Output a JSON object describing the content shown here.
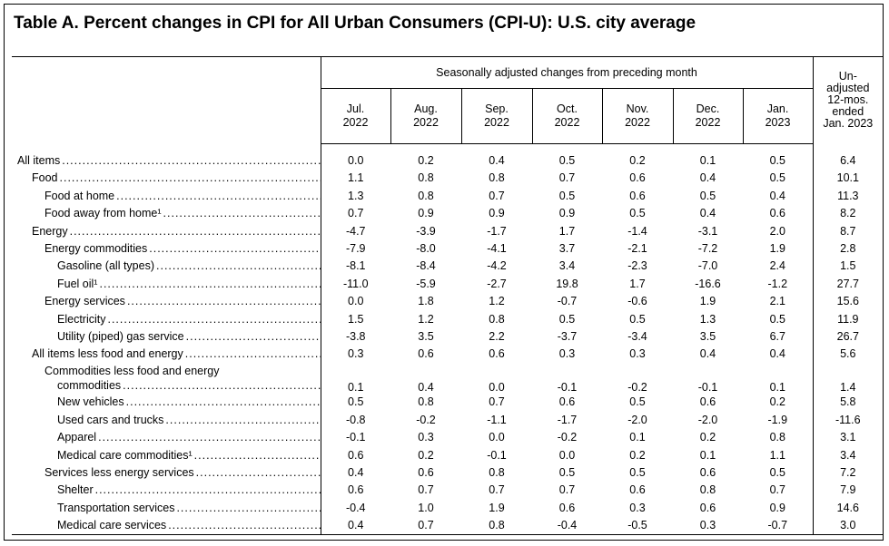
{
  "title": "Table A. Percent changes in CPI for All Urban Consumers (CPI-U): U.S. city average",
  "header": {
    "span_label": "Seasonally adjusted changes from preceding month",
    "months": [
      {
        "month": "Jul.",
        "year": "2022"
      },
      {
        "month": "Aug.",
        "year": "2022"
      },
      {
        "month": "Sep.",
        "year": "2022"
      },
      {
        "month": "Oct.",
        "year": "2022"
      },
      {
        "month": "Nov.",
        "year": "2022"
      },
      {
        "month": "Dec.",
        "year": "2022"
      },
      {
        "month": "Jan.",
        "year": "2023"
      }
    ],
    "unadjusted_lines": [
      "Un-",
      "adjusted",
      "12-mos.",
      "ended",
      "Jan. 2023"
    ]
  },
  "rows": [
    {
      "label": "All items",
      "indent": 0,
      "values": [
        "0.0",
        "0.2",
        "0.4",
        "0.5",
        "0.2",
        "0.1",
        "0.5",
        "6.4"
      ]
    },
    {
      "label": "Food",
      "indent": 1,
      "values": [
        "1.1",
        "0.8",
        "0.8",
        "0.7",
        "0.6",
        "0.4",
        "0.5",
        "10.1"
      ]
    },
    {
      "label": "Food at home",
      "indent": 2,
      "values": [
        "1.3",
        "0.8",
        "0.7",
        "0.5",
        "0.6",
        "0.5",
        "0.4",
        "11.3"
      ]
    },
    {
      "label": "Food away from home¹",
      "indent": 2,
      "values": [
        "0.7",
        "0.9",
        "0.9",
        "0.9",
        "0.5",
        "0.4",
        "0.6",
        "8.2"
      ]
    },
    {
      "label": "Energy",
      "indent": 1,
      "values": [
        "-4.7",
        "-3.9",
        "-1.7",
        "1.7",
        "-1.4",
        "-3.1",
        "2.0",
        "8.7"
      ]
    },
    {
      "label": "Energy commodities",
      "indent": 2,
      "values": [
        "-7.9",
        "-8.0",
        "-4.1",
        "3.7",
        "-2.1",
        "-7.2",
        "1.9",
        "2.8"
      ]
    },
    {
      "label": "Gasoline (all types)",
      "indent": 3,
      "values": [
        "-8.1",
        "-8.4",
        "-4.2",
        "3.4",
        "-2.3",
        "-7.0",
        "2.4",
        "1.5"
      ]
    },
    {
      "label": "Fuel oil¹",
      "indent": 3,
      "values": [
        "-11.0",
        "-5.9",
        "-2.7",
        "19.8",
        "1.7",
        "-16.6",
        "-1.2",
        "27.7"
      ]
    },
    {
      "label": "Energy services",
      "indent": 2,
      "values": [
        "0.0",
        "1.8",
        "1.2",
        "-0.7",
        "-0.6",
        "1.9",
        "2.1",
        "15.6"
      ]
    },
    {
      "label": "Electricity",
      "indent": 3,
      "values": [
        "1.5",
        "1.2",
        "0.8",
        "0.5",
        "0.5",
        "1.3",
        "0.5",
        "11.9"
      ]
    },
    {
      "label": "Utility (piped) gas service",
      "indent": 3,
      "values": [
        "-3.8",
        "3.5",
        "2.2",
        "-3.7",
        "-3.4",
        "3.5",
        "6.7",
        "26.7"
      ]
    },
    {
      "label": "All items less food and energy",
      "indent": 1,
      "values": [
        "0.3",
        "0.6",
        "0.6",
        "0.3",
        "0.3",
        "0.4",
        "0.4",
        "5.6"
      ]
    },
    {
      "label": "Commodities less food and energy",
      "label2": "commodities",
      "indent": 2,
      "values": [
        "0.1",
        "0.4",
        "0.0",
        "-0.1",
        "-0.2",
        "-0.1",
        "0.1",
        "1.4"
      ]
    },
    {
      "label": "New vehicles",
      "indent": 3,
      "values": [
        "0.5",
        "0.8",
        "0.7",
        "0.6",
        "0.5",
        "0.6",
        "0.2",
        "5.8"
      ]
    },
    {
      "label": "Used cars and trucks",
      "indent": 3,
      "values": [
        "-0.8",
        "-0.2",
        "-1.1",
        "-1.7",
        "-2.0",
        "-2.0",
        "-1.9",
        "-11.6"
      ]
    },
    {
      "label": "Apparel",
      "indent": 3,
      "values": [
        "-0.1",
        "0.3",
        "0.0",
        "-0.2",
        "0.1",
        "0.2",
        "0.8",
        "3.1"
      ]
    },
    {
      "label": "Medical care commodities¹",
      "indent": 3,
      "values": [
        "0.6",
        "0.2",
        "-0.1",
        "0.0",
        "0.2",
        "0.1",
        "1.1",
        "3.4"
      ]
    },
    {
      "label": "Services less energy services",
      "indent": 2,
      "values": [
        "0.4",
        "0.6",
        "0.8",
        "0.5",
        "0.5",
        "0.6",
        "0.5",
        "7.2"
      ]
    },
    {
      "label": "Shelter",
      "indent": 3,
      "values": [
        "0.6",
        "0.7",
        "0.7",
        "0.7",
        "0.6",
        "0.8",
        "0.7",
        "7.9"
      ]
    },
    {
      "label": "Transportation services",
      "indent": 3,
      "values": [
        "-0.4",
        "1.0",
        "1.9",
        "0.6",
        "0.3",
        "0.6",
        "0.9",
        "14.6"
      ]
    },
    {
      "label": "Medical care services",
      "indent": 3,
      "values": [
        "0.4",
        "0.7",
        "0.8",
        "-0.4",
        "-0.5",
        "0.3",
        "-0.7",
        "3.0"
      ]
    }
  ]
}
